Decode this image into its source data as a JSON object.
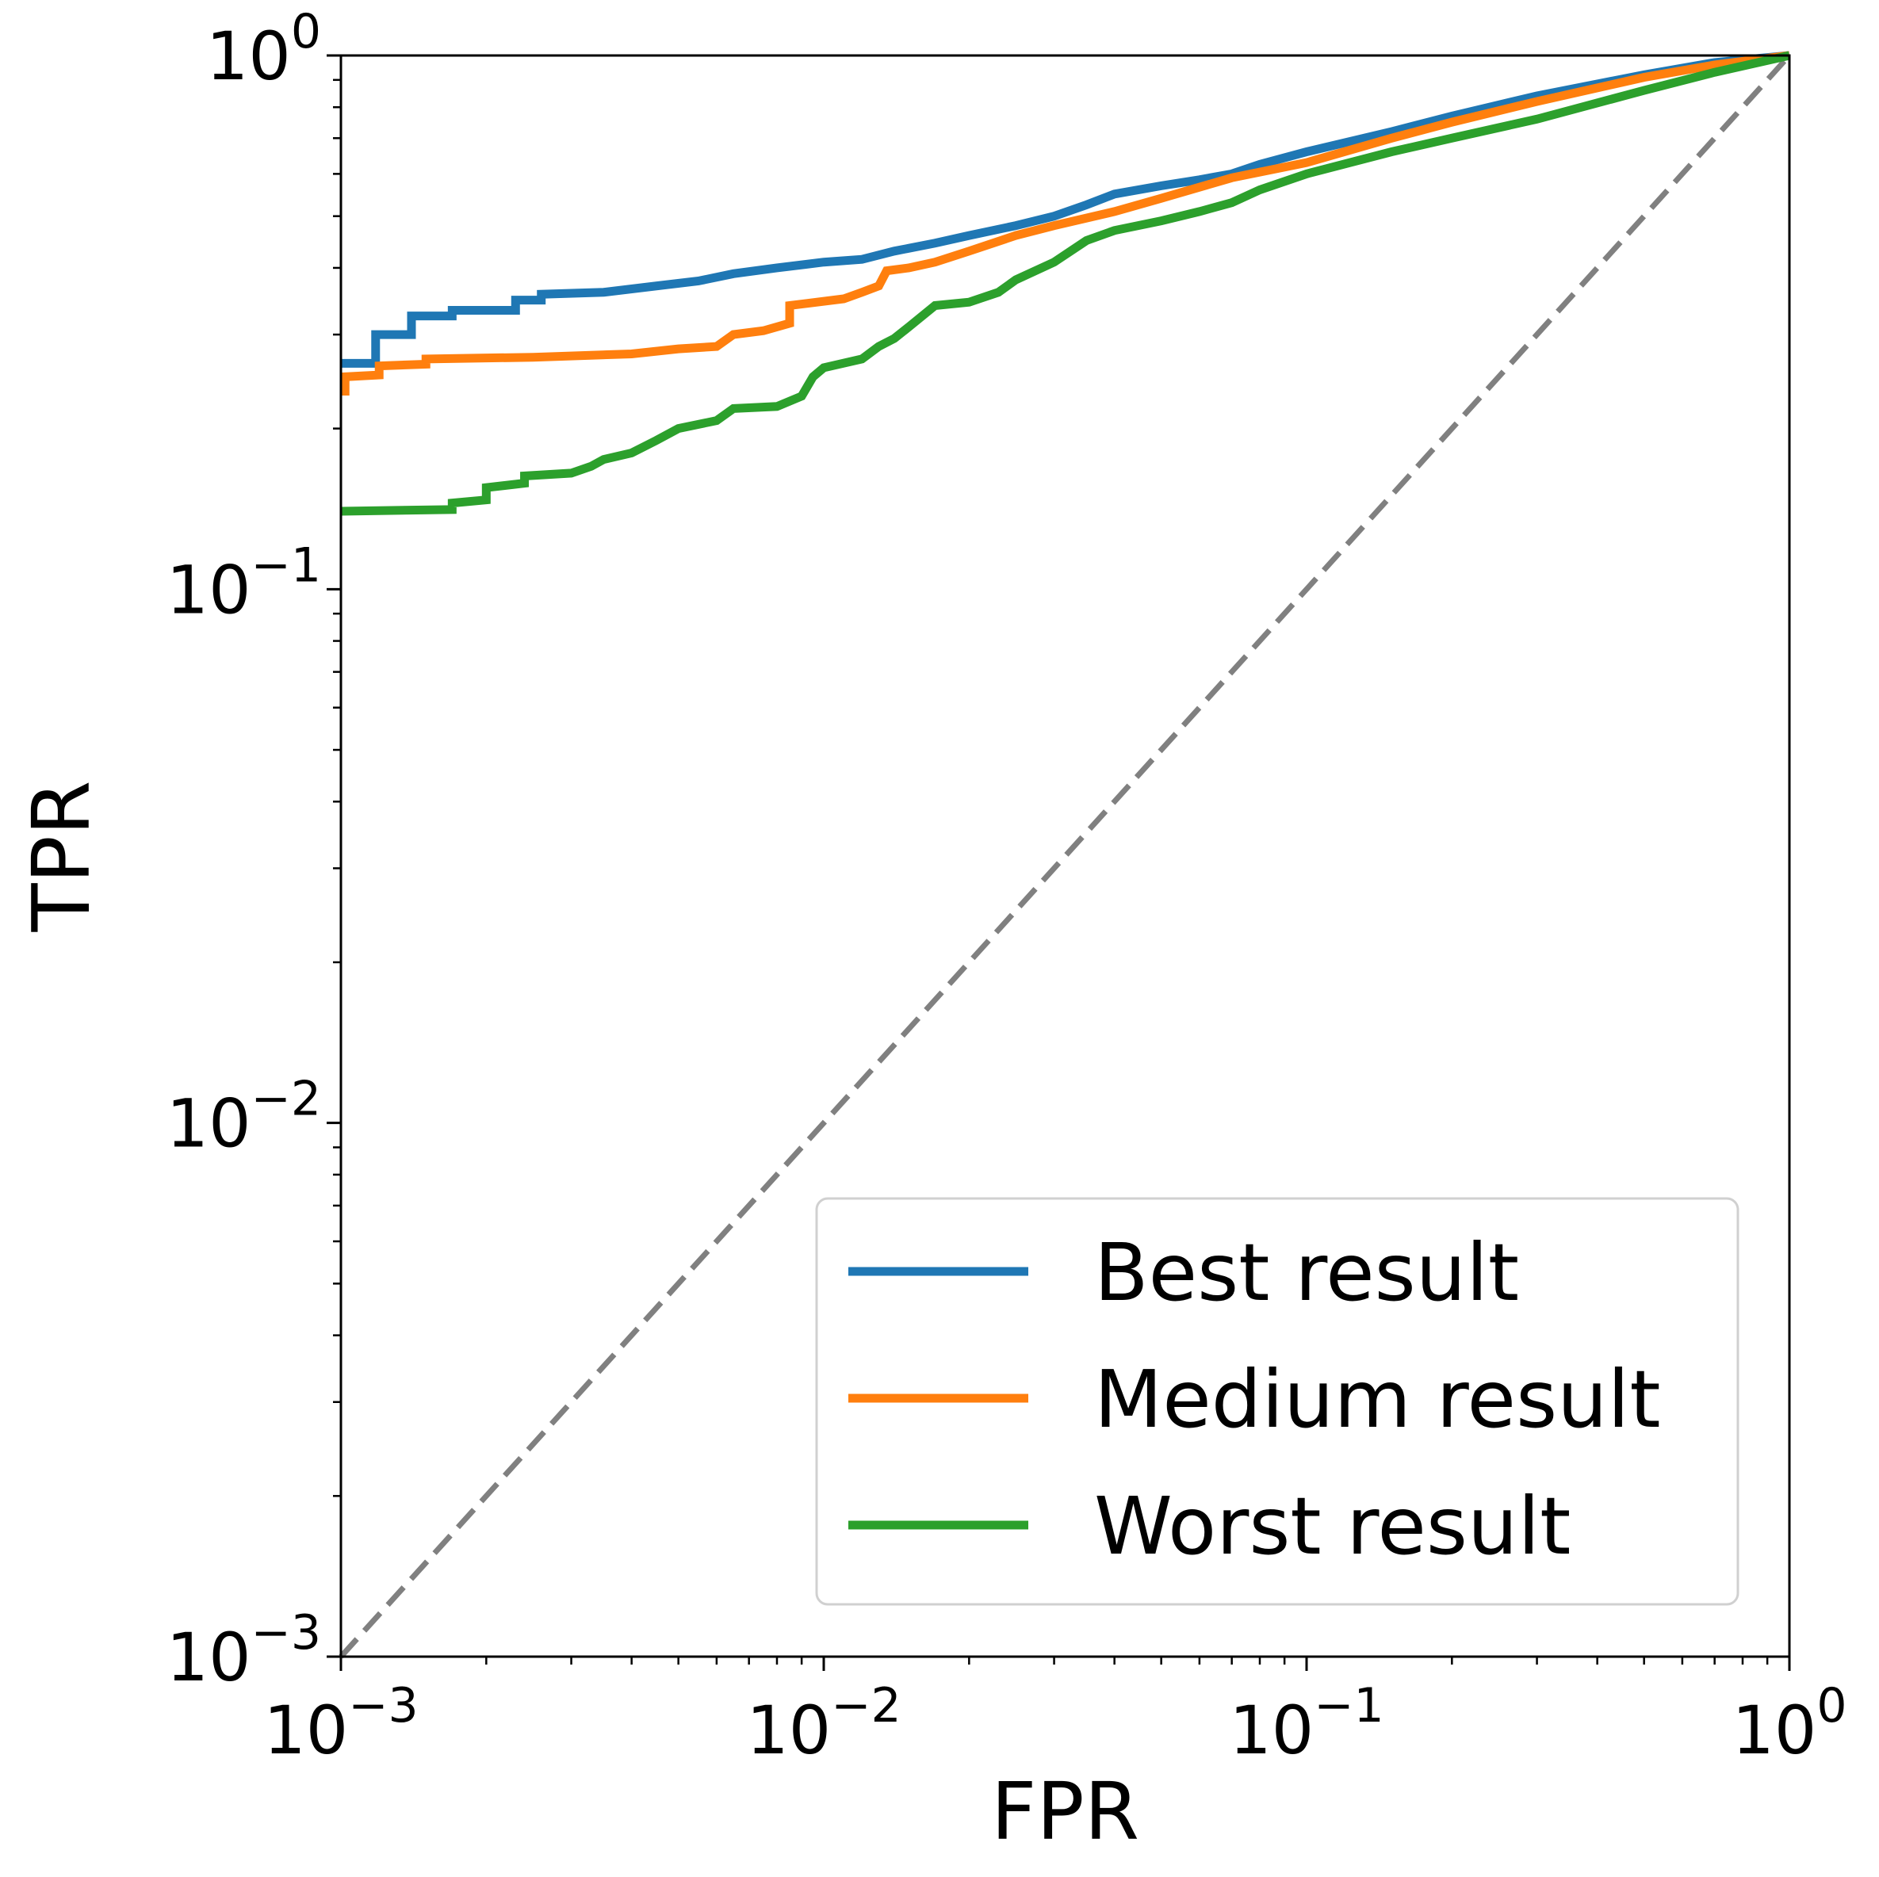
{
  "chart_data": {
    "type": "line",
    "title": "",
    "xlabel": "FPR",
    "ylabel": "TPR",
    "xscale": "log",
    "yscale": "log",
    "xlim": [
      0.001,
      1
    ],
    "ylim": [
      0.001,
      1
    ],
    "grid": false,
    "legend_position": "lower right",
    "x_ticks": [
      {
        "value": 0.001,
        "base": "10",
        "exp": "−3"
      },
      {
        "value": 0.01,
        "base": "10",
        "exp": "−2"
      },
      {
        "value": 0.1,
        "base": "10",
        "exp": "−1"
      },
      {
        "value": 1,
        "base": "10",
        "exp": "0"
      }
    ],
    "y_ticks": [
      {
        "value": 0.001,
        "base": "10",
        "exp": "−3"
      },
      {
        "value": 0.01,
        "base": "10",
        "exp": "−2"
      },
      {
        "value": 0.1,
        "base": "10",
        "exp": "−1"
      },
      {
        "value": 1,
        "base": "10",
        "exp": "0"
      }
    ],
    "series": [
      {
        "name": "Best result",
        "color": "#1f77b4",
        "points": [
          [
            0.001,
            0.265
          ],
          [
            0.00118,
            0.265
          ],
          [
            0.00118,
            0.3
          ],
          [
            0.0014,
            0.3
          ],
          [
            0.0014,
            0.325
          ],
          [
            0.0017,
            0.325
          ],
          [
            0.0017,
            0.333
          ],
          [
            0.0023,
            0.333
          ],
          [
            0.0023,
            0.348
          ],
          [
            0.0026,
            0.348
          ],
          [
            0.0026,
            0.357
          ],
          [
            0.0035,
            0.36
          ],
          [
            0.0045,
            0.37
          ],
          [
            0.0055,
            0.378
          ],
          [
            0.0065,
            0.39
          ],
          [
            0.008,
            0.4
          ],
          [
            0.01,
            0.41
          ],
          [
            0.012,
            0.415
          ],
          [
            0.014,
            0.43
          ],
          [
            0.017,
            0.445
          ],
          [
            0.02,
            0.46
          ],
          [
            0.025,
            0.48
          ],
          [
            0.03,
            0.5
          ],
          [
            0.035,
            0.525
          ],
          [
            0.04,
            0.55
          ],
          [
            0.05,
            0.57
          ],
          [
            0.06,
            0.585
          ],
          [
            0.07,
            0.6
          ],
          [
            0.08,
            0.625
          ],
          [
            0.1,
            0.66
          ],
          [
            0.15,
            0.72
          ],
          [
            0.2,
            0.77
          ],
          [
            0.3,
            0.84
          ],
          [
            0.5,
            0.92
          ],
          [
            0.7,
            0.97
          ],
          [
            1,
            1
          ]
        ]
      },
      {
        "name": "Medium result",
        "color": "#ff7f0e",
        "points": [
          [
            0.001,
            0.235
          ],
          [
            0.00102,
            0.235
          ],
          [
            0.00102,
            0.25
          ],
          [
            0.0012,
            0.252
          ],
          [
            0.0012,
            0.262
          ],
          [
            0.0015,
            0.264
          ],
          [
            0.0015,
            0.27
          ],
          [
            0.0025,
            0.272
          ],
          [
            0.004,
            0.276
          ],
          [
            0.005,
            0.282
          ],
          [
            0.006,
            0.285
          ],
          [
            0.0065,
            0.3
          ],
          [
            0.0075,
            0.305
          ],
          [
            0.0085,
            0.315
          ],
          [
            0.0085,
            0.34
          ],
          [
            0.011,
            0.35
          ],
          [
            0.012,
            0.36
          ],
          [
            0.013,
            0.37
          ],
          [
            0.0135,
            0.395
          ],
          [
            0.015,
            0.4
          ],
          [
            0.017,
            0.41
          ],
          [
            0.02,
            0.43
          ],
          [
            0.025,
            0.46
          ],
          [
            0.03,
            0.48
          ],
          [
            0.04,
            0.51
          ],
          [
            0.05,
            0.54
          ],
          [
            0.07,
            0.59
          ],
          [
            0.1,
            0.63
          ],
          [
            0.15,
            0.7
          ],
          [
            0.2,
            0.75
          ],
          [
            0.3,
            0.82
          ],
          [
            0.5,
            0.91
          ],
          [
            0.7,
            0.96
          ],
          [
            1,
            1
          ]
        ]
      },
      {
        "name": "Worst result",
        "color": "#2ca02c",
        "points": [
          [
            0.001,
            0.14
          ],
          [
            0.0017,
            0.141
          ],
          [
            0.0017,
            0.145
          ],
          [
            0.002,
            0.147
          ],
          [
            0.002,
            0.155
          ],
          [
            0.0024,
            0.158
          ],
          [
            0.0024,
            0.163
          ],
          [
            0.003,
            0.165
          ],
          [
            0.0033,
            0.17
          ],
          [
            0.0035,
            0.175
          ],
          [
            0.004,
            0.18
          ],
          [
            0.0045,
            0.19
          ],
          [
            0.005,
            0.2
          ],
          [
            0.006,
            0.207
          ],
          [
            0.0065,
            0.218
          ],
          [
            0.008,
            0.22
          ],
          [
            0.009,
            0.23
          ],
          [
            0.0095,
            0.25
          ],
          [
            0.01,
            0.26
          ],
          [
            0.012,
            0.27
          ],
          [
            0.013,
            0.285
          ],
          [
            0.014,
            0.295
          ],
          [
            0.015,
            0.31
          ],
          [
            0.017,
            0.34
          ],
          [
            0.02,
            0.345
          ],
          [
            0.023,
            0.36
          ],
          [
            0.025,
            0.38
          ],
          [
            0.03,
            0.41
          ],
          [
            0.035,
            0.45
          ],
          [
            0.04,
            0.47
          ],
          [
            0.05,
            0.49
          ],
          [
            0.06,
            0.51
          ],
          [
            0.07,
            0.53
          ],
          [
            0.08,
            0.56
          ],
          [
            0.1,
            0.6
          ],
          [
            0.15,
            0.66
          ],
          [
            0.2,
            0.7
          ],
          [
            0.3,
            0.76
          ],
          [
            0.5,
            0.86
          ],
          [
            0.7,
            0.93
          ],
          [
            1,
            1
          ]
        ]
      }
    ],
    "reference_line": {
      "color": "#808080",
      "style": "dashed",
      "points": [
        [
          0.001,
          0.001
        ],
        [
          1,
          1
        ]
      ]
    }
  }
}
